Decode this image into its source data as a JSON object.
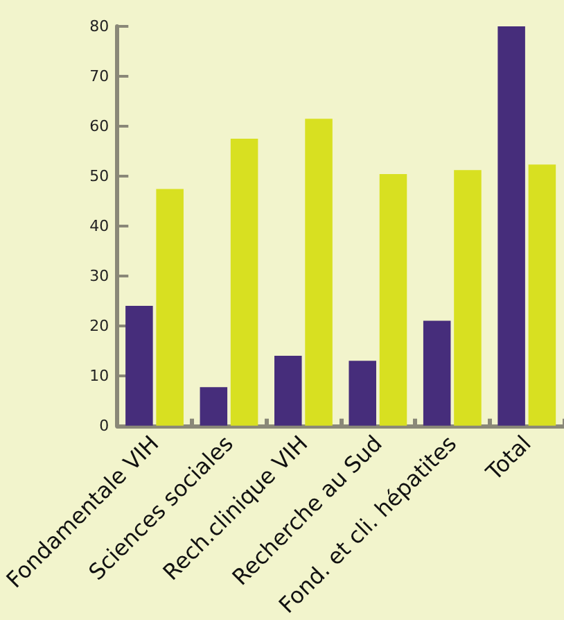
{
  "chart_data": {
    "type": "bar",
    "categories": [
      "Fondamentale VIH",
      "Sciences sociales",
      "Rech.clinique VIH",
      "Recherche au Sud",
      "Fond. et cli. hépatites",
      "Total"
    ],
    "series": [
      {
        "color": "#462d7b",
        "values": [
          24,
          7.7,
          14,
          13,
          21,
          80
        ]
      },
      {
        "color": "#d8e021",
        "values": [
          47.4,
          57.5,
          61.5,
          50.4,
          51.2,
          52.3
        ]
      }
    ],
    "ylim": [
      0,
      80
    ],
    "yticks": [
      0,
      10,
      20,
      30,
      40,
      50,
      60,
      70,
      80
    ],
    "grid": false
  }
}
